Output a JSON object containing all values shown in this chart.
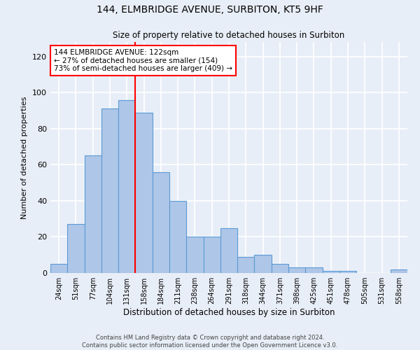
{
  "title1": "144, ELMBRIDGE AVENUE, SURBITON, KT5 9HF",
  "title2": "Size of property relative to detached houses in Surbiton",
  "xlabel": "Distribution of detached houses by size in Surbiton",
  "ylabel": "Number of detached properties",
  "categories": [
    "24sqm",
    "51sqm",
    "77sqm",
    "104sqm",
    "131sqm",
    "158sqm",
    "184sqm",
    "211sqm",
    "238sqm",
    "264sqm",
    "291sqm",
    "318sqm",
    "344sqm",
    "371sqm",
    "398sqm",
    "425sqm",
    "451sqm",
    "478sqm",
    "505sqm",
    "531sqm",
    "558sqm"
  ],
  "values": [
    5,
    27,
    65,
    91,
    96,
    89,
    56,
    40,
    20,
    20,
    25,
    9,
    10,
    5,
    3,
    3,
    1,
    1,
    0,
    0,
    2
  ],
  "bar_color": "#aec6e8",
  "bar_edge_color": "#5b9bd5",
  "vline_x_index": 4.5,
  "vline_color": "red",
  "annotation_text": "144 ELMBRIDGE AVENUE: 122sqm\n← 27% of detached houses are smaller (154)\n73% of semi-detached houses are larger (409) →",
  "annotation_box_color": "white",
  "annotation_box_edge_color": "red",
  "ylim": [
    0,
    128
  ],
  "yticks": [
    0,
    20,
    40,
    60,
    80,
    100,
    120
  ],
  "footer1": "Contains HM Land Registry data © Crown copyright and database right 2024.",
  "footer2": "Contains public sector information licensed under the Open Government Licence v3.0.",
  "bg_color": "#e8eef7",
  "grid_color": "white"
}
